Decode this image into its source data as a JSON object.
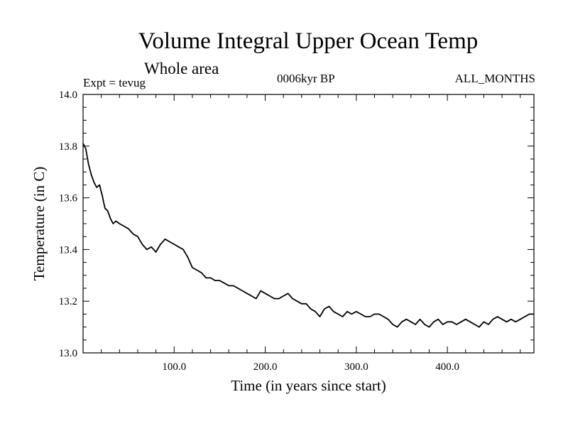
{
  "title": "Volume Integral Upper Ocean Temp",
  "subtitle": "Whole area",
  "left_label": "Expt = tevug",
  "center_label": "0006kyr BP",
  "right_label": "ALL_MONTHS",
  "chart_data": {
    "type": "line",
    "title": "Volume Integral Upper Ocean Temp",
    "xlabel": "Time (in years since start)",
    "ylabel": "Temperature (in C)",
    "xlim": [
      0,
      495
    ],
    "ylim": [
      13.0,
      14.0
    ],
    "x_ticks": [
      {
        "value": 100,
        "label": "100.0"
      },
      {
        "value": 200,
        "label": "200.0"
      },
      {
        "value": 300,
        "label": "300.0"
      },
      {
        "value": 400,
        "label": "400.0"
      }
    ],
    "y_ticks": [
      {
        "value": 13.0,
        "label": "13.0"
      },
      {
        "value": 13.2,
        "label": "13.2"
      },
      {
        "value": 13.4,
        "label": "13.4"
      },
      {
        "value": 13.6,
        "label": "13.6"
      },
      {
        "value": 13.8,
        "label": "13.8"
      },
      {
        "value": 14.0,
        "label": "14.0"
      }
    ],
    "grid": false,
    "line_color": "#000000",
    "series": [
      {
        "x": [
          0,
          3,
          6,
          9,
          12,
          15,
          18,
          21,
          24,
          27,
          30,
          33,
          36,
          40,
          45,
          50,
          55,
          60,
          65,
          70,
          75,
          80,
          85,
          90,
          95,
          100,
          105,
          110,
          115,
          120,
          125,
          130,
          135,
          140,
          145,
          150,
          155,
          160,
          165,
          170,
          175,
          180,
          185,
          190,
          195,
          200,
          205,
          210,
          215,
          220,
          225,
          230,
          235,
          240,
          245,
          250,
          255,
          260,
          265,
          270,
          275,
          280,
          285,
          290,
          295,
          300,
          305,
          310,
          315,
          320,
          325,
          330,
          335,
          340,
          345,
          350,
          355,
          360,
          365,
          370,
          375,
          380,
          385,
          390,
          395,
          400,
          405,
          410,
          415,
          420,
          425,
          430,
          435,
          440,
          445,
          450,
          455,
          460,
          465,
          470,
          475,
          480,
          485,
          490,
          495
        ],
        "y": [
          13.81,
          13.79,
          13.73,
          13.69,
          13.66,
          13.64,
          13.65,
          13.61,
          13.56,
          13.55,
          13.52,
          13.5,
          13.51,
          13.5,
          13.49,
          13.48,
          13.46,
          13.45,
          13.42,
          13.4,
          13.41,
          13.39,
          13.42,
          13.44,
          13.43,
          13.42,
          13.41,
          13.4,
          13.37,
          13.33,
          13.32,
          13.31,
          13.29,
          13.29,
          13.28,
          13.28,
          13.27,
          13.26,
          13.26,
          13.25,
          13.24,
          13.23,
          13.22,
          13.21,
          13.24,
          13.23,
          13.22,
          13.21,
          13.21,
          13.22,
          13.23,
          13.21,
          13.2,
          13.19,
          13.19,
          13.17,
          13.16,
          13.14,
          13.17,
          13.18,
          13.16,
          13.15,
          13.14,
          13.16,
          13.15,
          13.16,
          13.15,
          13.14,
          13.14,
          13.15,
          13.15,
          13.14,
          13.13,
          13.11,
          13.1,
          13.12,
          13.13,
          13.12,
          13.11,
          13.13,
          13.11,
          13.1,
          13.12,
          13.13,
          13.11,
          13.12,
          13.12,
          13.11,
          13.12,
          13.13,
          13.12,
          13.11,
          13.1,
          13.12,
          13.11,
          13.13,
          13.14,
          13.13,
          13.12,
          13.13,
          13.12,
          13.13,
          13.14,
          13.15,
          13.15
        ]
      }
    ]
  }
}
